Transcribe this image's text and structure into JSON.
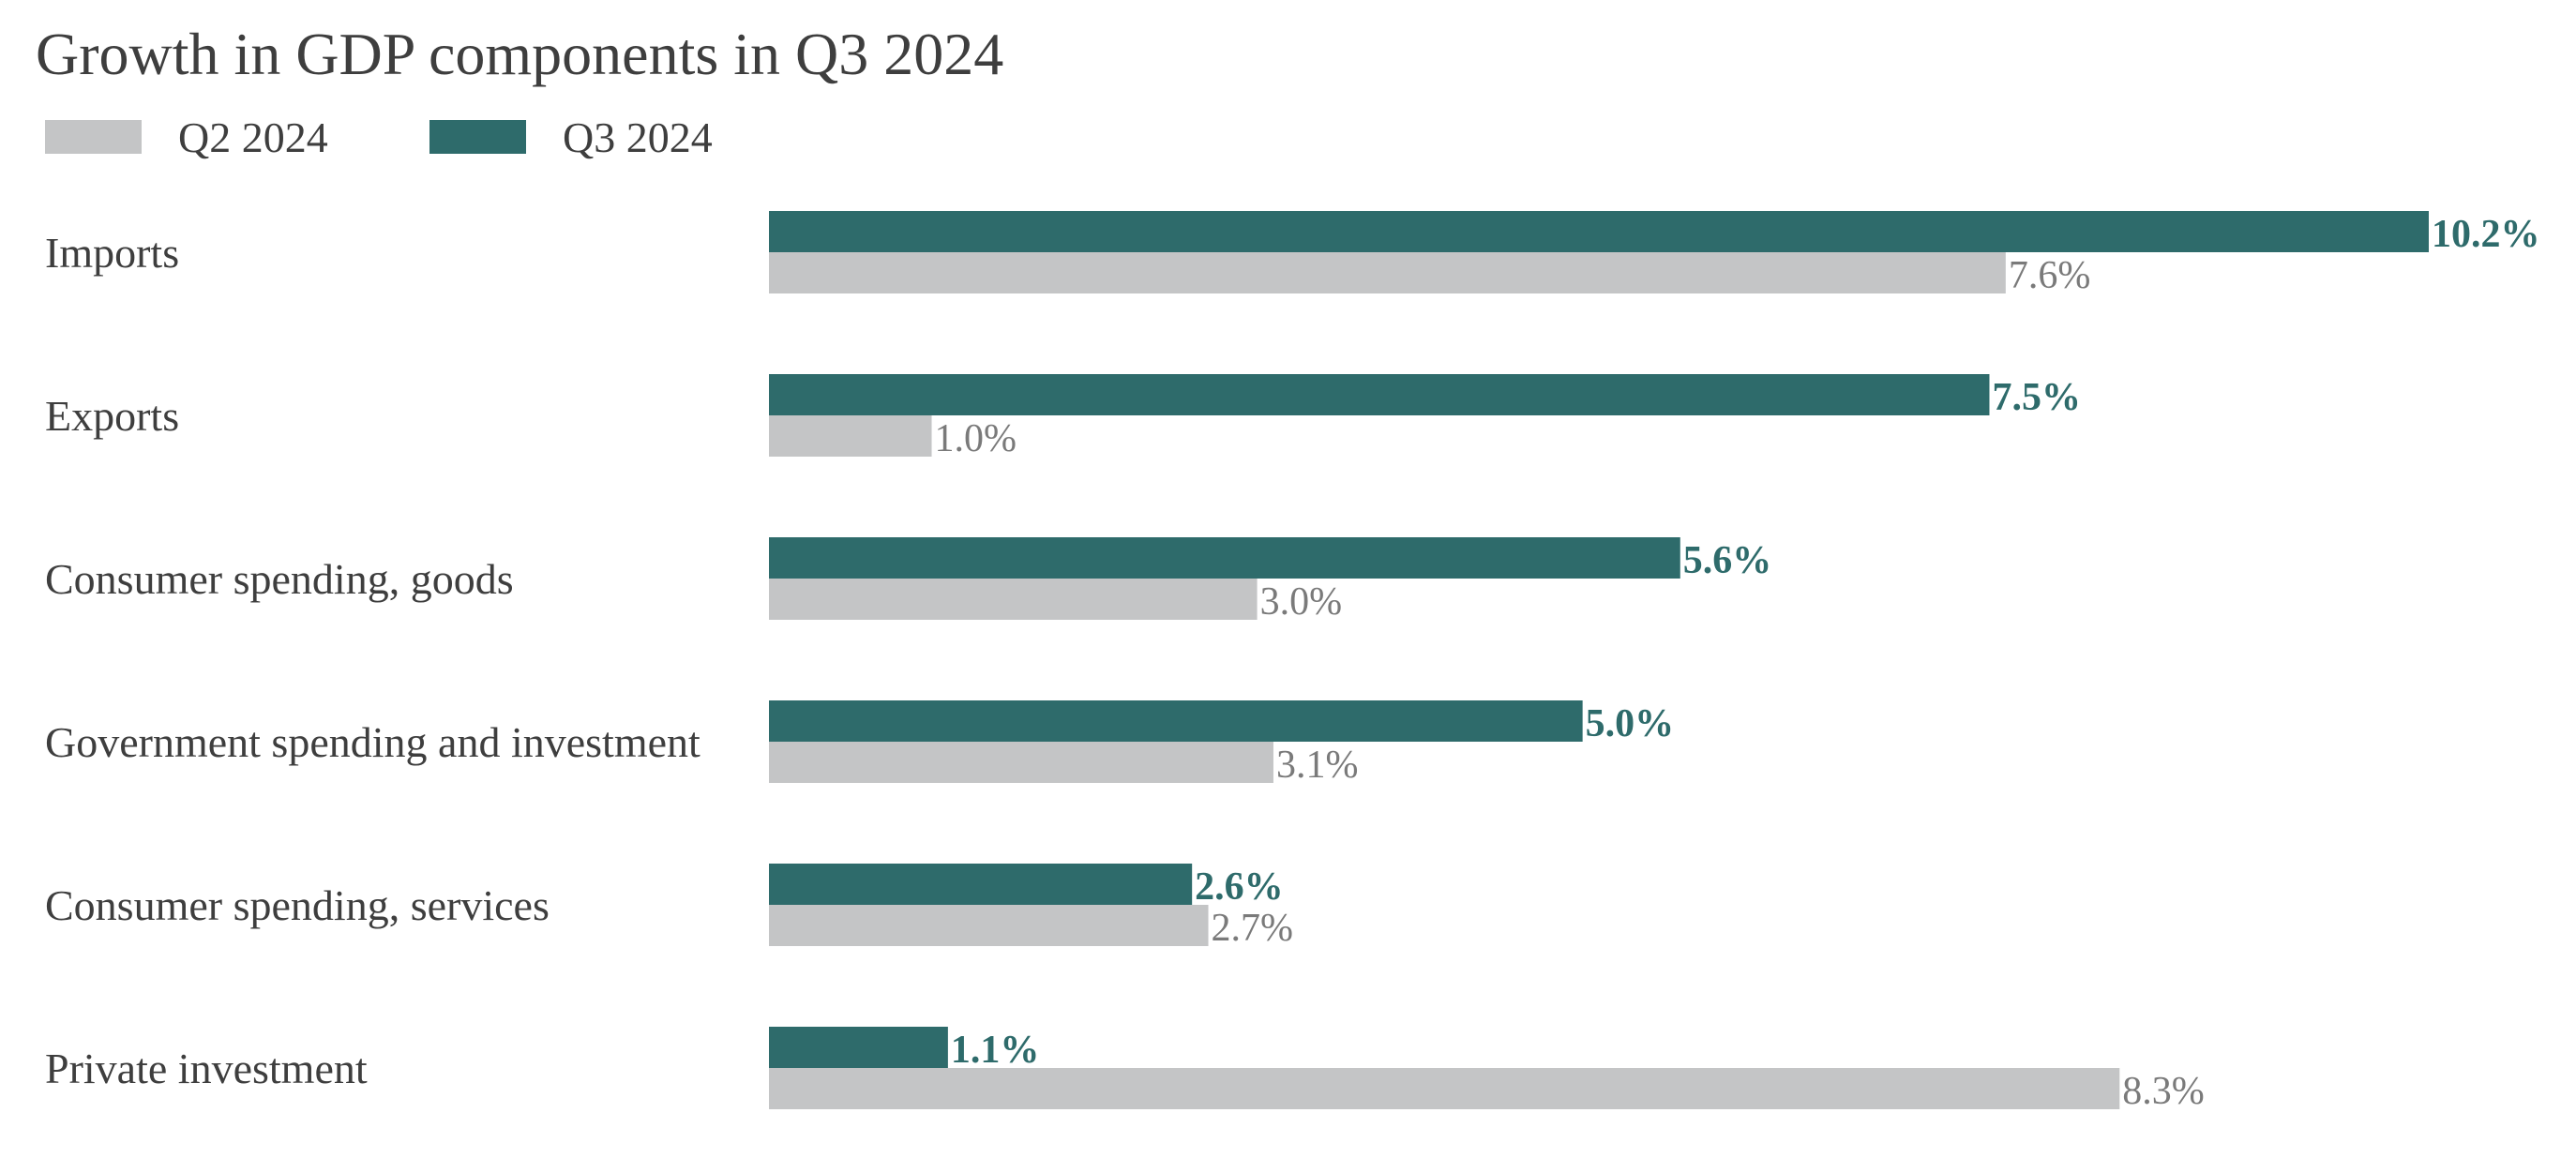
{
  "chart_data": {
    "type": "bar",
    "orientation": "horizontal",
    "title": "Growth in GDP components in Q3 2024",
    "categories": [
      "Imports",
      "Exports",
      "Consumer spending, goods",
      "Government spending and investment",
      "Consumer spending, services",
      "Private investment"
    ],
    "series": [
      {
        "name": "Q3 2024",
        "color": "#2e6b6b",
        "values": [
          10.2,
          7.5,
          5.6,
          5.0,
          2.6,
          1.1
        ],
        "labels": [
          "10.2%",
          "7.5%",
          "5.6%",
          "5.0%",
          "2.6%",
          "1.1%"
        ]
      },
      {
        "name": "Q2 2024",
        "color": "#c4c5c6",
        "values": [
          7.6,
          1.0,
          3.0,
          3.1,
          2.7,
          8.3
        ],
        "labels": [
          "7.6%",
          "1.0%",
          "3.0%",
          "3.1%",
          "2.7%",
          "8.3%"
        ]
      }
    ],
    "legend": {
      "position": "top-left",
      "order": [
        "Q2 2024",
        "Q3 2024"
      ]
    },
    "xlim": [
      0,
      10.2
    ],
    "grid": false,
    "xlabel": "",
    "ylabel": "",
    "value_label_colors": {
      "Q3 2024": "#2e6b6b",
      "Q2 2024": "#7a7a7a"
    }
  }
}
